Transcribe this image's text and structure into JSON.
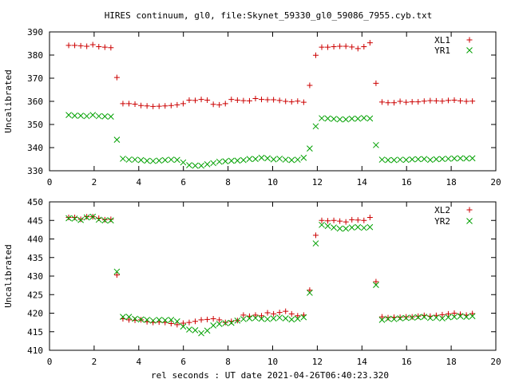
{
  "figure": {
    "title": "HIRES continuum, gl0, file:Skynet_59330_gl0_59086_7955.cyb.txt",
    "xlabel": "rel seconds : UT date 2021-04-26T06:40:23.320"
  },
  "chart_data": [
    {
      "type": "scatter",
      "ylabel": "Uncalibrated",
      "xlim": [
        0,
        20
      ],
      "ylim": [
        330,
        390
      ],
      "xticks": [
        0,
        2,
        4,
        6,
        8,
        10,
        12,
        14,
        16,
        18,
        20
      ],
      "yticks": [
        330,
        340,
        350,
        360,
        370,
        380,
        390
      ],
      "grid": false,
      "legend_position": "top-right",
      "x": [
        0.86,
        1.13,
        1.4,
        1.67,
        1.94,
        2.21,
        2.48,
        2.75,
        3.02,
        3.29,
        3.56,
        3.83,
        4.1,
        4.37,
        4.64,
        4.91,
        5.18,
        5.45,
        5.72,
        5.99,
        6.26,
        6.53,
        6.8,
        7.07,
        7.34,
        7.61,
        7.88,
        8.15,
        8.42,
        8.69,
        8.96,
        9.23,
        9.5,
        9.77,
        10.04,
        10.31,
        10.58,
        10.85,
        11.12,
        11.39,
        11.66,
        11.93,
        12.2,
        12.47,
        12.74,
        13.01,
        13.28,
        13.55,
        13.82,
        14.09,
        14.36,
        14.63,
        14.9,
        15.17,
        15.44,
        15.71,
        15.98,
        16.25,
        16.52,
        16.79,
        17.06,
        17.33,
        17.6,
        17.87,
        18.14,
        18.41,
        18.68,
        18.95
      ],
      "series": [
        {
          "name": "XL1",
          "marker": "+",
          "color": "#cc0000",
          "values": [
            384.2,
            384.2,
            384.0,
            383.8,
            384.5,
            383.6,
            383.4,
            383.2,
            370.3,
            359.0,
            359.0,
            358.8,
            358.2,
            358.0,
            357.8,
            357.9,
            358.0,
            358.2,
            358.5,
            359.0,
            360.5,
            360.4,
            360.8,
            360.5,
            358.7,
            358.5,
            359.0,
            360.8,
            360.5,
            360.3,
            360.2,
            361.2,
            360.8,
            360.7,
            360.7,
            360.4,
            360.0,
            359.8,
            360.1,
            359.6,
            366.9,
            379.9,
            383.4,
            383.4,
            383.6,
            383.8,
            383.8,
            383.5,
            382.8,
            383.6,
            385.3,
            367.8,
            359.7,
            359.4,
            359.4,
            360.0,
            359.6,
            359.8,
            359.8,
            360.1,
            360.3,
            360.2,
            360.1,
            360.4,
            360.5,
            360.2,
            360.0,
            360.1
          ]
        },
        {
          "name": "YR1",
          "marker": "x",
          "color": "#00a000",
          "values": [
            354.1,
            353.8,
            353.8,
            353.6,
            354.1,
            353.6,
            353.5,
            353.4,
            343.4,
            335.2,
            334.8,
            334.8,
            334.6,
            334.3,
            334.2,
            334.4,
            334.6,
            334.8,
            334.7,
            333.6,
            332.4,
            332.2,
            332.2,
            332.8,
            333.3,
            333.9,
            334.1,
            334.3,
            334.4,
            334.6,
            335.1,
            335.1,
            335.6,
            335.4,
            334.9,
            335.2,
            334.8,
            334.6,
            334.8,
            335.6,
            339.6,
            349.2,
            352.7,
            352.6,
            352.4,
            352.2,
            352.2,
            352.5,
            352.5,
            352.8,
            352.6,
            341.1,
            334.8,
            334.6,
            334.6,
            334.8,
            334.7,
            334.9,
            335.0,
            335.1,
            334.7,
            335.0,
            335.1,
            335.2,
            335.3,
            335.4,
            335.3,
            335.4
          ]
        }
      ]
    },
    {
      "type": "scatter",
      "ylabel": "Uncalibrated",
      "xlim": [
        0,
        20
      ],
      "ylim": [
        410,
        450
      ],
      "xticks": [
        0,
        2,
        4,
        6,
        8,
        10,
        12,
        14,
        16,
        18,
        20
      ],
      "yticks": [
        410,
        415,
        420,
        425,
        430,
        435,
        440,
        445,
        450
      ],
      "grid": false,
      "legend_position": "top-right",
      "x": [
        0.86,
        1.13,
        1.4,
        1.67,
        1.94,
        2.21,
        2.48,
        2.75,
        3.02,
        3.29,
        3.56,
        3.83,
        4.1,
        4.37,
        4.64,
        4.91,
        5.18,
        5.45,
        5.72,
        5.99,
        6.26,
        6.53,
        6.8,
        7.07,
        7.34,
        7.61,
        7.88,
        8.15,
        8.42,
        8.69,
        8.96,
        9.23,
        9.5,
        9.77,
        10.04,
        10.31,
        10.58,
        10.85,
        11.12,
        11.39,
        11.66,
        11.93,
        12.2,
        12.47,
        12.74,
        13.01,
        13.28,
        13.55,
        13.82,
        14.09,
        14.36,
        14.63,
        14.9,
        15.17,
        15.44,
        15.71,
        15.98,
        16.25,
        16.52,
        16.79,
        17.06,
        17.33,
        17.6,
        17.87,
        18.14,
        18.41,
        18.68,
        18.95
      ],
      "series": [
        {
          "name": "XL2",
          "marker": "+",
          "color": "#cc0000",
          "values": [
            445.8,
            445.8,
            445.3,
            446.0,
            446.0,
            445.6,
            445.2,
            445.3,
            430.3,
            418.5,
            418.2,
            418.1,
            418.2,
            417.7,
            417.5,
            417.6,
            417.5,
            417.2,
            416.9,
            417.3,
            417.5,
            417.8,
            418.2,
            418.3,
            418.5,
            418.2,
            417.5,
            417.8,
            418.0,
            419.5,
            419.2,
            419.5,
            419.3,
            420.1,
            419.8,
            420.2,
            420.5,
            419.8,
            419.3,
            419.5,
            426.2,
            441.0,
            445.0,
            444.9,
            445.0,
            444.8,
            444.6,
            445.2,
            445.1,
            445.0,
            445.8,
            428.5,
            419.0,
            418.8,
            418.9,
            418.9,
            419.0,
            419.0,
            419.2,
            419.4,
            419.2,
            419.4,
            419.6,
            419.8,
            420.0,
            419.7,
            419.5,
            419.9
          ]
        },
        {
          "name": "YR2",
          "marker": "x",
          "color": "#00a000",
          "values": [
            445.6,
            445.5,
            445.1,
            445.8,
            446.0,
            445.2,
            445.0,
            445.0,
            431.2,
            419.0,
            419.0,
            418.5,
            418.3,
            418.2,
            418.0,
            418.2,
            418.1,
            418.2,
            417.8,
            416.4,
            415.6,
            415.4,
            414.6,
            415.3,
            416.7,
            417.1,
            417.3,
            417.4,
            418.0,
            418.4,
            418.6,
            418.7,
            418.5,
            418.4,
            418.6,
            418.8,
            418.6,
            418.3,
            418.5,
            418.9,
            425.5,
            438.8,
            443.8,
            443.5,
            443.1,
            442.8,
            442.8,
            443.1,
            443.2,
            443.0,
            443.2,
            427.6,
            418.2,
            418.5,
            418.4,
            418.6,
            418.7,
            418.8,
            418.9,
            419.0,
            418.7,
            418.8,
            418.6,
            418.9,
            419.0,
            419.2,
            419.0,
            419.2
          ]
        }
      ]
    }
  ]
}
